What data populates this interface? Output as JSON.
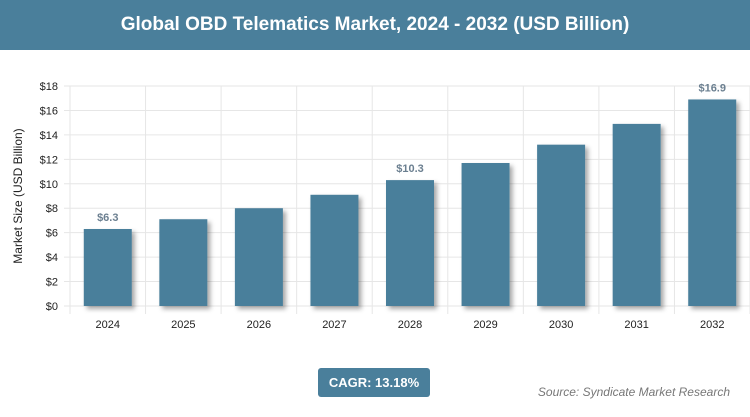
{
  "header": {
    "title": "Global OBD Telematics Market, 2024 - 2032 (USD Billion)"
  },
  "chart_data": {
    "type": "bar",
    "title": "Global OBD Telematics Market, 2024 - 2032 (USD Billion)",
    "xlabel": "",
    "ylabel": "Market Size (USD Billion)",
    "categories": [
      "2024",
      "2025",
      "2026",
      "2027",
      "2028",
      "2029",
      "2030",
      "2031",
      "2032"
    ],
    "values": [
      6.3,
      7.1,
      8.0,
      9.1,
      10.3,
      11.7,
      13.2,
      14.9,
      16.9
    ],
    "data_labels": {
      "0": "$6.3",
      "4": "$10.3",
      "8": "$16.9"
    },
    "ylim": [
      0,
      18
    ],
    "yticks": [
      "$0",
      "$2",
      "$4",
      "$6",
      "$8",
      "$10",
      "$12",
      "$14",
      "$16",
      "$18"
    ],
    "grid": true,
    "bar_color": "#4a7f9b"
  },
  "footer": {
    "cagr": "CAGR: 13.18%",
    "source": "Source: Syndicate Market Research"
  }
}
